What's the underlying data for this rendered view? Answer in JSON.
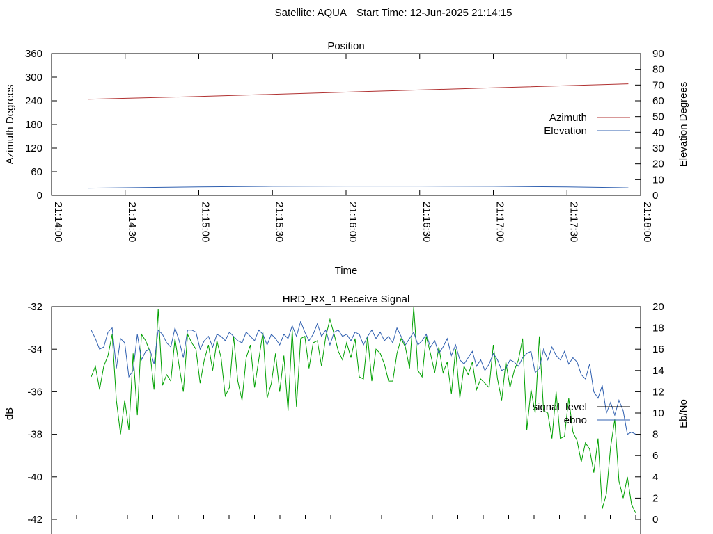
{
  "header": {
    "satellite": "Satellite: AQUA",
    "start_time": "Start Time: 12-Jun-2025 21:14:15"
  },
  "chart_data": [
    {
      "type": "line",
      "title": "Position",
      "xlabel": "Time",
      "ylabel": "Azimuth Degrees",
      "y2label": "Elevation Degrees",
      "xlim": [
        "21:14:00",
        "21:18:00"
      ],
      "ylim": [
        0,
        360
      ],
      "y2lim": [
        0,
        90
      ],
      "x_ticks": [
        "21:14:00",
        "21:14:30",
        "21:15:00",
        "21:15:30",
        "21:16:00",
        "21:16:30",
        "21:17:00",
        "21:17:30",
        "21:18:00"
      ],
      "y_ticks": [
        "0",
        "60",
        "120",
        "180",
        "240",
        "300",
        "360"
      ],
      "y2_ticks": [
        "0",
        "10",
        "20",
        "30",
        "40",
        "50",
        "60",
        "70",
        "80",
        "90"
      ],
      "legend": "right",
      "series": [
        {
          "name": "Azimuth",
          "axis": "left",
          "color": "#b03030",
          "x": [
            "21:14:15",
            "21:15:00",
            "21:16:00",
            "21:17:00",
            "21:17:55"
          ],
          "values": [
            244,
            251,
            262,
            273,
            283
          ]
        },
        {
          "name": "Elevation",
          "axis": "right",
          "color": "#3060b0",
          "x": [
            "21:14:15",
            "21:15:00",
            "21:15:30",
            "21:16:00",
            "21:16:30",
            "21:17:00",
            "21:17:30",
            "21:17:55"
          ],
          "values": [
            4.6,
            5.4,
            5.8,
            5.9,
            5.9,
            5.8,
            5.4,
            4.8
          ]
        }
      ]
    },
    {
      "type": "line",
      "title": "HRD_RX_1 Receive Signal",
      "ylabel": "dB",
      "y2label": "Eb/No",
      "ylim": [
        -42,
        -32
      ],
      "y2lim": [
        0,
        20
      ],
      "y_ticks": [
        "-42",
        "-40",
        "-38",
        "-36",
        "-34",
        "-32"
      ],
      "y2_ticks": [
        "0",
        "2",
        "4",
        "6",
        "8",
        "10",
        "12",
        "14",
        "16",
        "18",
        "20"
      ],
      "legend": "right",
      "series": [
        {
          "name": "signal_level",
          "axis": "left",
          "color": "#00a000",
          "values": [
            -35.3,
            -34.8,
            -35.9,
            -34.8,
            -34.3,
            -33.3,
            -36.4,
            -38.0,
            -36.4,
            -37.8,
            -34.2,
            -37.1,
            -33.3,
            -33.6,
            -34.1,
            -35.9,
            -32.1,
            -35.7,
            -35.2,
            -35.5,
            -33.5,
            -34.8,
            -36.0,
            -33.3,
            -33.7,
            -34.0,
            -35.6,
            -34.5,
            -33.8,
            -35.0,
            -33.6,
            -34.4,
            -36.2,
            -35.8,
            -33.4,
            -35.5,
            -36.4,
            -34.4,
            -33.8,
            -35.8,
            -34.5,
            -33.2,
            -36.3,
            -35.6,
            -34.2,
            -36.0,
            -34.3,
            -36.9,
            -33.1,
            -36.7,
            -33.5,
            -33.4,
            -34.9,
            -33.7,
            -33.6,
            -34.8,
            -33.4,
            -32.6,
            -33.3,
            -34.1,
            -34.5,
            -33.7,
            -34.4,
            -33.5,
            -35.3,
            -35.4,
            -33.4,
            -35.5,
            -34.0,
            -34.2,
            -34.7,
            -35.5,
            -35.5,
            -34.2,
            -33.5,
            -33.9,
            -34.9,
            -32.0,
            -35.0,
            -35.3,
            -33.4,
            -34.2,
            -35.1,
            -33.9,
            -35.1,
            -34.6,
            -36.1,
            -34.0,
            -36.3,
            -34.8,
            -35.2,
            -34.6,
            -35.9,
            -35.4,
            -35.6,
            -35.8,
            -33.8,
            -35.4,
            -36.4,
            -34.6,
            -35.8,
            -35.0,
            -34.5,
            -33.5,
            -37.8,
            -35.9,
            -37.0,
            -33.4,
            -36.9,
            -37.0,
            -38.2,
            -36.0,
            -38.2,
            -38.1,
            -36.3,
            -37.9,
            -38.3,
            -39.3,
            -38.4,
            -38.7,
            -39.8,
            -38.2,
            -41.5,
            -40.8,
            -38.6,
            -37.3,
            -40.2,
            -41.0,
            -40.0,
            -41.3,
            -41.7
          ]
        },
        {
          "name": "ebno",
          "axis": "right",
          "color": "#3060b0",
          "values": [
            17.8,
            17.0,
            16.0,
            16.2,
            17.6,
            18.0,
            14.2,
            17.0,
            16.6,
            13.4,
            14.0,
            17.4,
            15.0,
            15.8,
            16.0,
            14.6,
            17.8,
            17.4,
            16.6,
            16.2,
            18.0,
            16.8,
            15.2,
            17.8,
            17.8,
            17.6,
            16.0,
            16.8,
            17.2,
            16.2,
            17.4,
            17.2,
            16.8,
            17.6,
            17.2,
            16.8,
            16.6,
            17.6,
            17.2,
            16.8,
            17.8,
            17.4,
            16.4,
            17.4,
            17.0,
            16.4,
            17.4,
            17.0,
            18.2,
            17.2,
            18.6,
            17.6,
            16.8,
            17.4,
            18.4,
            17.2,
            17.8,
            16.4,
            17.6,
            17.8,
            17.2,
            17.4,
            16.8,
            17.6,
            17.4,
            16.4,
            17.2,
            17.8,
            17.0,
            17.6,
            16.8,
            17.2,
            16.6,
            18.0,
            17.2,
            16.4,
            17.0,
            17.6,
            16.4,
            16.8,
            17.4,
            16.2,
            16.8,
            15.6,
            16.2,
            17.0,
            15.4,
            16.4,
            15.0,
            14.6,
            15.2,
            15.8,
            14.4,
            15.0,
            14.0,
            14.6,
            15.6,
            15.0,
            14.0,
            14.2,
            15.0,
            14.8,
            14.4,
            15.2,
            15.6,
            15.8,
            13.8,
            14.2,
            16.0,
            15.0,
            16.2,
            15.4,
            15.0,
            15.8,
            14.6,
            15.2,
            14.8,
            13.6,
            13.2,
            14.6,
            12.0,
            11.4,
            12.6,
            10.0,
            11.0,
            9.8,
            11.2,
            10.2,
            8.0,
            8.2,
            8.0
          ]
        }
      ]
    }
  ]
}
